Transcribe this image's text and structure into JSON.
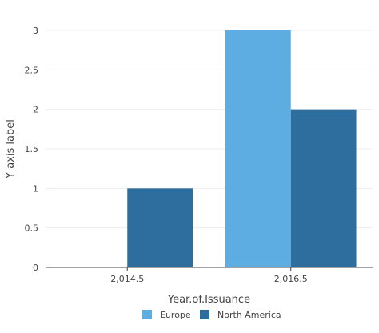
{
  "chart_data": {
    "type": "bar",
    "xlabel": "Year.of.Issuance",
    "ylabel": "Y axis label",
    "categories": [
      "2,014.5",
      "2,016.5"
    ],
    "series": [
      {
        "name": "Europe",
        "color": "#5dade2",
        "values": [
          null,
          3
        ]
      },
      {
        "name": "North America",
        "color": "#2e6e9e",
        "values": [
          1,
          2
        ]
      }
    ],
    "ylim": [
      0,
      3
    ],
    "yticks": [
      "0",
      "0.5",
      "1",
      "1.5",
      "2",
      "2.5",
      "3"
    ],
    "grid": true,
    "legend": "bottom"
  }
}
